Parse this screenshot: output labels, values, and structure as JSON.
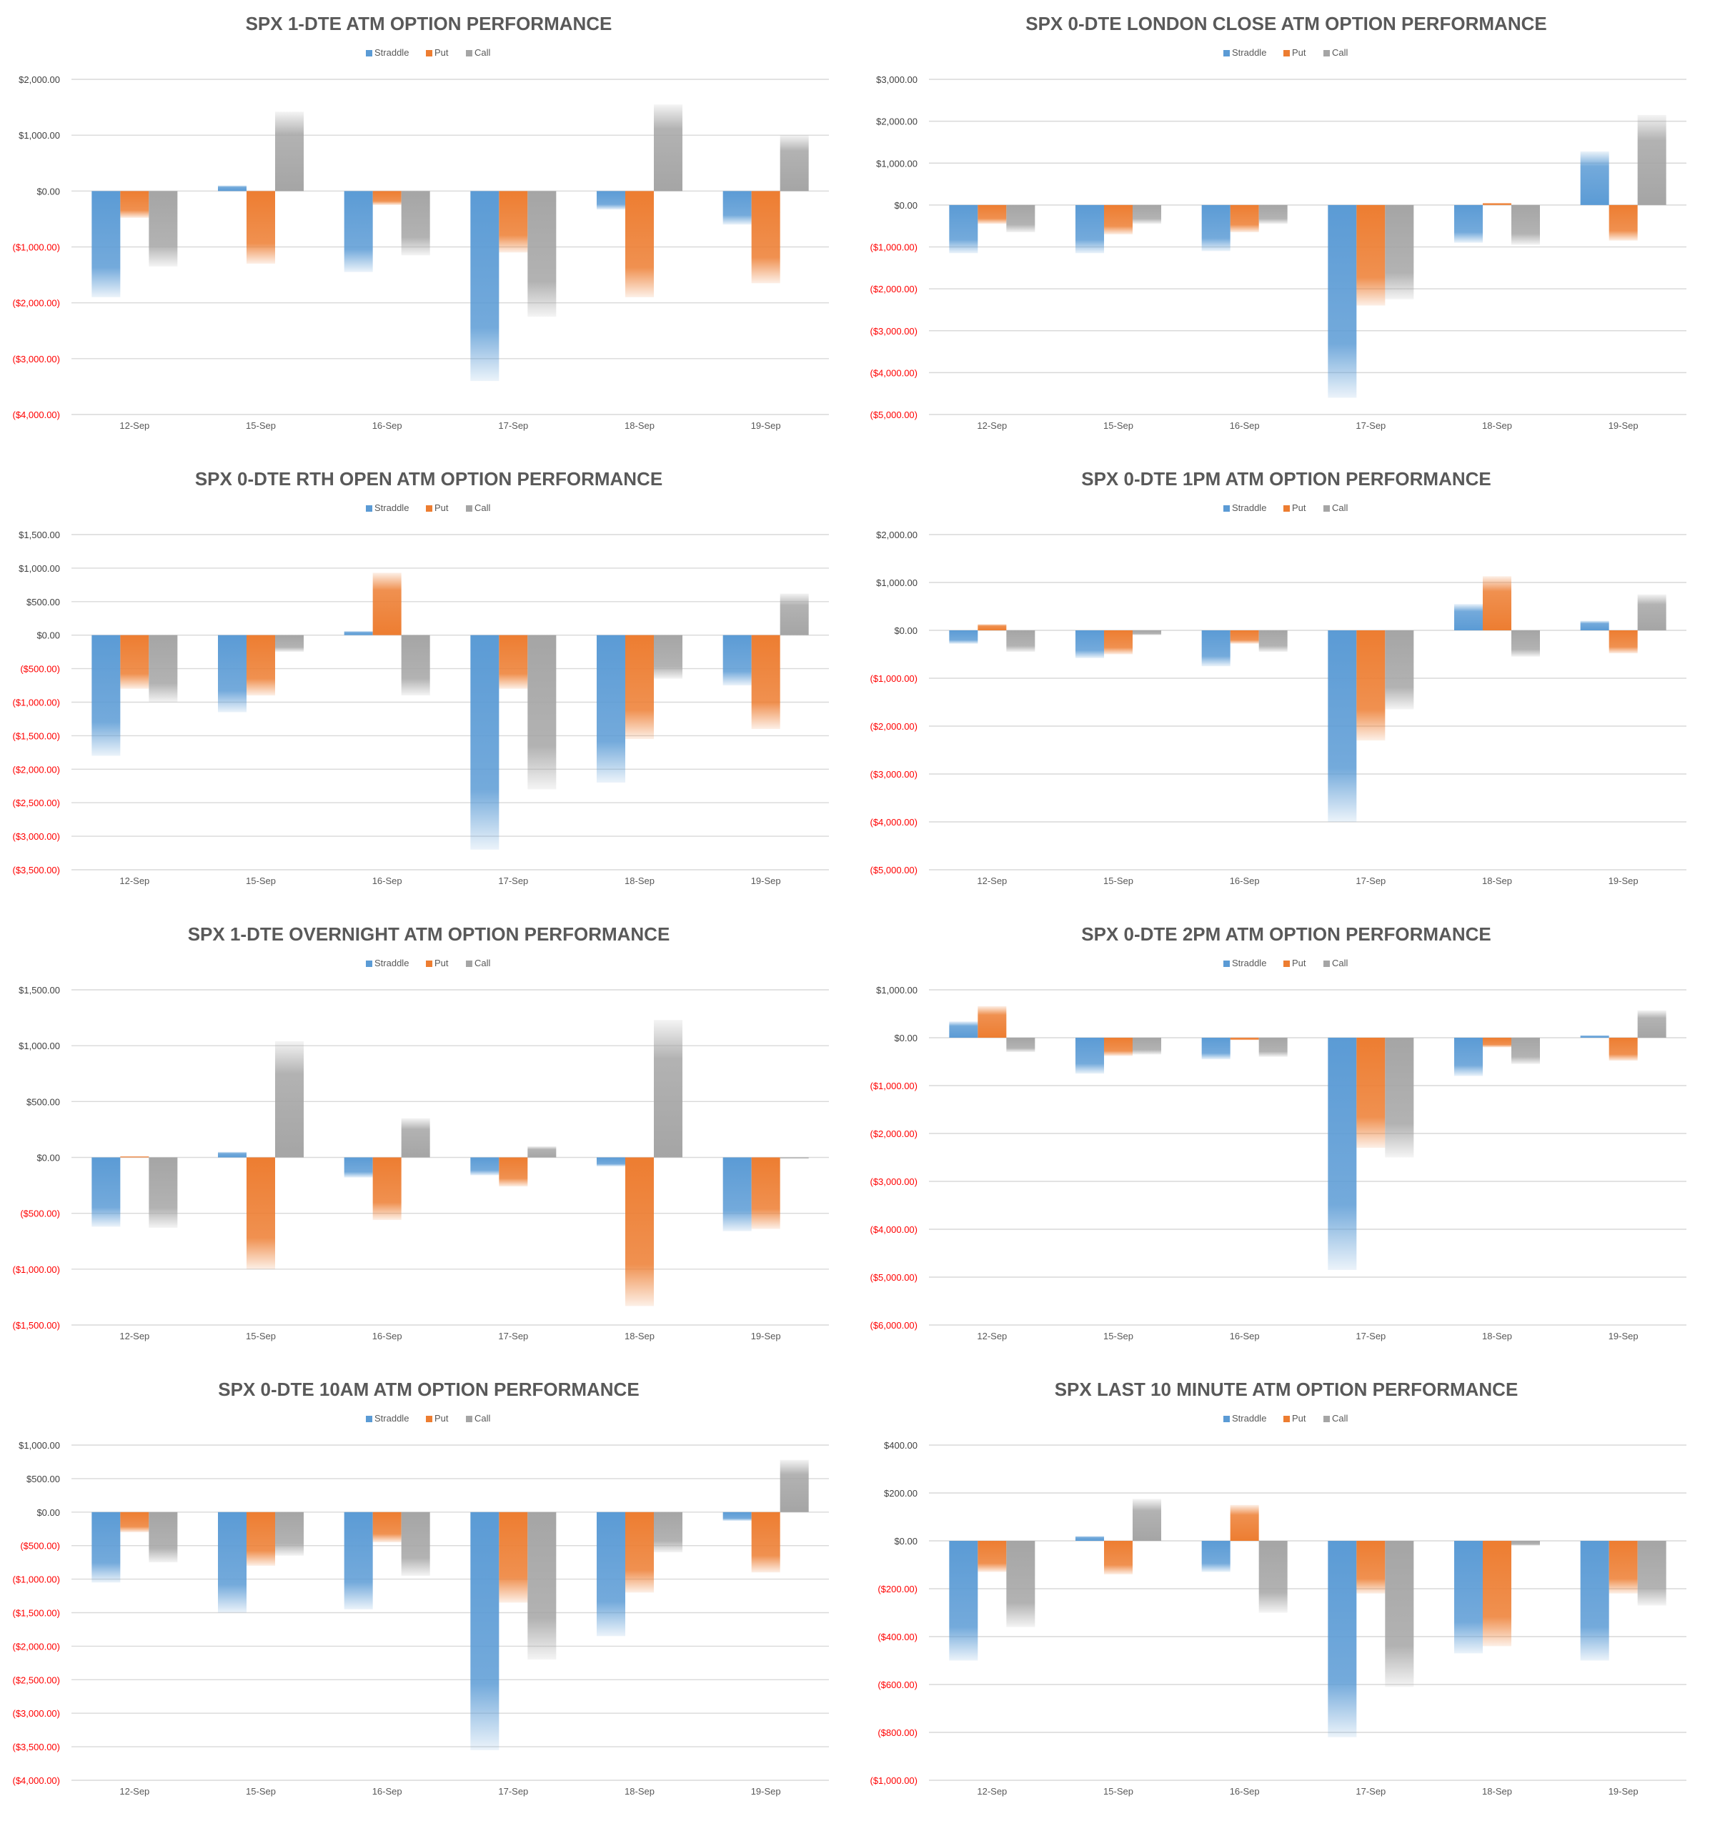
{
  "colors": {
    "straddle": "#5b9bd5",
    "put": "#ed7d31",
    "call": "#a5a5a5",
    "negative_tick": "#ff0000",
    "positive_tick": "#404040",
    "gridline": "#d9d9d9",
    "title": "#595959",
    "category_text": "#595959"
  },
  "chart_data": [
    {
      "type": "bar",
      "title": "SPX 1-DTE ATM OPTION PERFORMANCE",
      "categories": [
        "12-Sep",
        "15-Sep",
        "16-Sep",
        "17-Sep",
        "18-Sep",
        "19-Sep"
      ],
      "legend": [
        "Straddle",
        "Put",
        "Call"
      ],
      "ylim": [
        -4000,
        2000
      ],
      "yticks": [
        2000,
        1000,
        0,
        -1000,
        -2000,
        -3000,
        -4000
      ],
      "ytick_labels": [
        "$2,000.00",
        "$1,000.00",
        "$0.00",
        "($1,000.00)",
        "($2,000.00)",
        "($3,000.00)",
        "($4,000.00)"
      ],
      "series": [
        {
          "name": "Straddle",
          "values": [
            -1900,
            100,
            -1450,
            -3400,
            -330,
            -600
          ]
        },
        {
          "name": "Put",
          "values": [
            -480,
            -1300,
            -250,
            -1100,
            -1900,
            -1650
          ]
        },
        {
          "name": "Call",
          "values": [
            -1350,
            1420,
            -1150,
            -2250,
            1550,
            1000
          ]
        }
      ]
    },
    {
      "type": "bar",
      "title": "SPX 0-DTE  LONDON CLOSE ATM OPTION PERFORMANCE",
      "categories": [
        "12-Sep",
        "15-Sep",
        "16-Sep",
        "17-Sep",
        "18-Sep",
        "19-Sep"
      ],
      "legend": [
        "Straddle",
        "Put",
        "Call"
      ],
      "ylim": [
        -5000,
        3000
      ],
      "yticks": [
        3000,
        2000,
        1000,
        0,
        -1000,
        -2000,
        -3000,
        -4000,
        -5000
      ],
      "ytick_labels": [
        "$3,000.00",
        "$2,000.00",
        "$1,000.00",
        "$0.00",
        "($1,000.00)",
        "($2,000.00)",
        "($3,000.00)",
        "($4,000.00)",
        "($5,000.00)"
      ],
      "series": [
        {
          "name": "Straddle",
          "values": [
            -1150,
            -1150,
            -1100,
            -4600,
            -900,
            1280
          ]
        },
        {
          "name": "Put",
          "values": [
            -450,
            -700,
            -650,
            -2400,
            50,
            -850
          ]
        },
        {
          "name": "Call",
          "values": [
            -650,
            -450,
            -450,
            -2250,
            -950,
            2150
          ]
        }
      ]
    },
    {
      "type": "bar",
      "title": "SPX 0-DTE RTH OPEN ATM OPTION PERFORMANCE",
      "categories": [
        "12-Sep",
        "15-Sep",
        "16-Sep",
        "17-Sep",
        "18-Sep",
        "19-Sep"
      ],
      "legend": [
        "Straddle",
        "Put",
        "Call"
      ],
      "ylim": [
        -3500,
        1500
      ],
      "yticks": [
        1500,
        1000,
        500,
        0,
        -500,
        -1000,
        -1500,
        -2000,
        -2500,
        -3000,
        -3500
      ],
      "ytick_labels": [
        "$1,500.00",
        "$1,000.00",
        "$500.00",
        "$0.00",
        "($500.00)",
        "($1,000.00)",
        "($1,500.00)",
        "($2,000.00)",
        "($2,500.00)",
        "($3,000.00)",
        "($3,500.00)"
      ],
      "series": [
        {
          "name": "Straddle",
          "values": [
            -1800,
            -1150,
            60,
            -3200,
            -2200,
            -750
          ]
        },
        {
          "name": "Put",
          "values": [
            -800,
            -900,
            930,
            -800,
            -1550,
            -1400
          ]
        },
        {
          "name": "Call",
          "values": [
            -1000,
            -250,
            -900,
            -2300,
            -650,
            620
          ]
        }
      ]
    },
    {
      "type": "bar",
      "title": "SPX 0-DTE 1PM ATM OPTION PERFORMANCE",
      "categories": [
        "12-Sep",
        "15-Sep",
        "16-Sep",
        "17-Sep",
        "18-Sep",
        "19-Sep"
      ],
      "legend": [
        "Straddle",
        "Put",
        "Call"
      ],
      "ylim": [
        -5000,
        2000
      ],
      "yticks": [
        2000,
        1000,
        0,
        -1000,
        -2000,
        -3000,
        -4000,
        -5000
      ],
      "ytick_labels": [
        "$2,000.00",
        "$1,000.00",
        "$0.00",
        "($1,000.00)",
        "($2,000.00)",
        "($3,000.00)",
        "($4,000.00)",
        "($5,000.00)"
      ],
      "series": [
        {
          "name": "Straddle",
          "values": [
            -280,
            -580,
            -750,
            -4000,
            550,
            200
          ]
        },
        {
          "name": "Put",
          "values": [
            130,
            -500,
            -280,
            -2300,
            1130,
            -480
          ]
        },
        {
          "name": "Call",
          "values": [
            -450,
            -100,
            -450,
            -1650,
            -550,
            750
          ]
        }
      ]
    },
    {
      "type": "bar",
      "title": "SPX 1-DTE OVERNIGHT ATM OPTION PERFORMANCE",
      "categories": [
        "12-Sep",
        "15-Sep",
        "16-Sep",
        "17-Sep",
        "18-Sep",
        "19-Sep"
      ],
      "legend": [
        "Straddle",
        "Put",
        "Call"
      ],
      "ylim": [
        -1500,
        1500
      ],
      "yticks": [
        1500,
        1000,
        500,
        0,
        -500,
        -1000,
        -1500
      ],
      "ytick_labels": [
        "$1,500.00",
        "$1,000.00",
        "$500.00",
        "$0.00",
        "($500.00)",
        "($1,000.00)",
        "($1,500.00)"
      ],
      "series": [
        {
          "name": "Straddle",
          "values": [
            -620,
            50,
            -180,
            -160,
            -80,
            -660
          ]
        },
        {
          "name": "Put",
          "values": [
            10,
            -1000,
            -560,
            -260,
            -1330,
            -640
          ]
        },
        {
          "name": "Call",
          "values": [
            -630,
            1040,
            350,
            100,
            1230,
            -10
          ]
        }
      ]
    },
    {
      "type": "bar",
      "title": "SPX 0-DTE 2PM ATM OPTION PERFORMANCE",
      "categories": [
        "12-Sep",
        "15-Sep",
        "16-Sep",
        "17-Sep",
        "18-Sep",
        "19-Sep"
      ],
      "legend": [
        "Straddle",
        "Put",
        "Call"
      ],
      "ylim": [
        -6000,
        1000
      ],
      "yticks": [
        1000,
        0,
        -1000,
        -2000,
        -3000,
        -4000,
        -5000,
        -6000
      ],
      "ytick_labels": [
        "$1,000.00",
        "$0.00",
        "($1,000.00)",
        "($2,000.00)",
        "($3,000.00)",
        "($4,000.00)",
        "($5,000.00)",
        "($6,000.00)"
      ],
      "series": [
        {
          "name": "Straddle",
          "values": [
            340,
            -750,
            -450,
            -4850,
            -800,
            50
          ]
        },
        {
          "name": "Put",
          "values": [
            660,
            -380,
            -50,
            -2300,
            -200,
            -480
          ]
        },
        {
          "name": "Call",
          "values": [
            -300,
            -350,
            -400,
            -2500,
            -550,
            570
          ]
        }
      ]
    },
    {
      "type": "bar",
      "title": "SPX 0-DTE 10AM ATM OPTION PERFORMANCE",
      "categories": [
        "12-Sep",
        "15-Sep",
        "16-Sep",
        "17-Sep",
        "18-Sep",
        "19-Sep"
      ],
      "legend": [
        "Straddle",
        "Put",
        "Call"
      ],
      "ylim": [
        -4000,
        1000
      ],
      "yticks": [
        1000,
        500,
        0,
        -500,
        -1000,
        -1500,
        -2000,
        -2500,
        -3000,
        -3500,
        -4000
      ],
      "ytick_labels": [
        "$1,000.00",
        "$500.00",
        "$0.00",
        "($500.00)",
        "($1,000.00)",
        "($1,500.00)",
        "($2,000.00)",
        "($2,500.00)",
        "($3,000.00)",
        "($3,500.00)",
        "($4,000.00)"
      ],
      "series": [
        {
          "name": "Straddle",
          "values": [
            -1050,
            -1500,
            -1450,
            -3550,
            -1850,
            -130
          ]
        },
        {
          "name": "Put",
          "values": [
            -300,
            -800,
            -450,
            -1350,
            -1200,
            -900
          ]
        },
        {
          "name": "Call",
          "values": [
            -750,
            -650,
            -950,
            -2200,
            -600,
            780
          ]
        }
      ]
    },
    {
      "type": "bar",
      "title": "SPX LAST 10 MINUTE ATM OPTION PERFORMANCE",
      "categories": [
        "12-Sep",
        "15-Sep",
        "16-Sep",
        "17-Sep",
        "18-Sep",
        "19-Sep"
      ],
      "legend": [
        "Straddle",
        "Put",
        "Call"
      ],
      "ylim": [
        -1000,
        400
      ],
      "yticks": [
        400,
        200,
        0,
        -200,
        -400,
        -600,
        -800,
        -1000
      ],
      "ytick_labels": [
        "$400.00",
        "$200.00",
        "$0.00",
        "($200.00)",
        "($400.00)",
        "($600.00)",
        "($800.00)",
        "($1,000.00)"
      ],
      "series": [
        {
          "name": "Straddle",
          "values": [
            -500,
            20,
            -130,
            -820,
            -470,
            -500
          ]
        },
        {
          "name": "Put",
          "values": [
            -130,
            -140,
            150,
            -220,
            -440,
            -220
          ]
        },
        {
          "name": "Call",
          "values": [
            -360,
            175,
            -300,
            -610,
            -20,
            -270
          ]
        }
      ]
    }
  ]
}
